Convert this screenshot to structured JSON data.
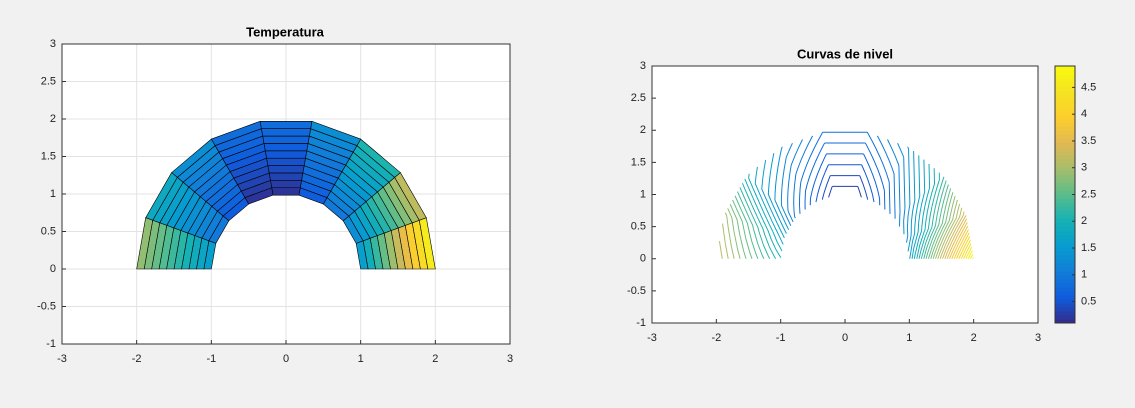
{
  "chart_data": [
    {
      "type": "patch",
      "title": "Temperatura",
      "theta_deg": [
        0,
        20,
        40,
        60,
        80,
        100,
        120,
        140,
        160,
        180
      ],
      "radius": [
        1,
        1.1,
        1.2,
        1.3,
        1.4,
        1.5,
        1.6,
        1.7,
        1.8,
        1.9,
        2
      ],
      "temperature": [
        [
          1.6,
          1.93,
          2.26,
          2.59,
          2.92,
          3.25,
          3.58,
          3.91,
          4.24,
          4.57,
          4.9
        ],
        [
          1.3,
          1.51,
          1.72,
          1.93,
          2.14,
          2.35,
          2.56,
          2.77,
          2.98,
          3.19,
          3.4
        ],
        [
          1.0,
          1.12,
          1.24,
          1.36,
          1.48,
          1.6,
          1.72,
          1.84,
          1.96,
          2.08,
          2.2
        ],
        [
          0.6,
          0.68,
          0.76,
          0.84,
          0.92,
          1.0,
          1.08,
          1.16,
          1.24,
          1.32,
          1.4
        ],
        [
          0.2,
          0.27,
          0.34,
          0.41,
          0.48,
          0.55,
          0.62,
          0.69,
          0.76,
          0.83,
          0.9
        ],
        [
          0.2,
          0.27,
          0.34,
          0.41,
          0.48,
          0.55,
          0.62,
          0.69,
          0.76,
          0.83,
          0.9
        ],
        [
          0.6,
          0.68,
          0.76,
          0.84,
          0.92,
          1.0,
          1.08,
          1.16,
          1.24,
          1.32,
          1.4
        ],
        [
          1.0,
          1.09,
          1.18,
          1.27,
          1.36,
          1.45,
          1.54,
          1.63,
          1.72,
          1.81,
          1.9
        ],
        [
          1.6,
          1.74,
          1.88,
          2.02,
          2.16,
          2.3,
          2.44,
          2.58,
          2.72,
          2.86,
          3.0
        ],
        [
          2.0,
          2.13,
          2.26,
          2.39,
          2.52,
          2.65,
          2.78,
          2.91,
          3.04,
          3.17,
          3.3
        ]
      ],
      "xlim": [
        -3,
        3
      ],
      "xticks": [
        -3,
        -2,
        -1,
        0,
        1,
        2,
        3
      ],
      "ylim": [
        -1,
        3
      ],
      "yticks": [
        -1,
        -0.5,
        0,
        0.5,
        1,
        1.5,
        2,
        2.5,
        3
      ],
      "grid": true,
      "clim": [
        0.1,
        4.9
      ],
      "colormap": "parula",
      "edge_color": "#000000"
    },
    {
      "type": "contour",
      "title": "Curvas de nivel",
      "levels": [
        0.3,
        0.42,
        0.54,
        0.66,
        0.78,
        0.9,
        1.02,
        1.14,
        1.26,
        1.38,
        1.5,
        1.62,
        1.74,
        1.86,
        1.98,
        2.1,
        2.22,
        2.34,
        2.46,
        2.58,
        2.7,
        2.82,
        2.94,
        3.06,
        3.18,
        3.3,
        3.42,
        3.54,
        3.66,
        3.78,
        3.9,
        4.02,
        4.14,
        4.26,
        4.38,
        4.5,
        4.62,
        4.74,
        4.86
      ],
      "xlim": [
        -3,
        3
      ],
      "xticks": [
        -3,
        -2,
        -1,
        0,
        1,
        2,
        3
      ],
      "ylim": [
        -1,
        3
      ],
      "yticks": [
        -1,
        -0.5,
        0,
        0.5,
        1,
        1.5,
        2,
        2.5,
        3
      ],
      "grid": false,
      "clim": [
        0.1,
        4.9
      ],
      "colormap": "parula",
      "colorbar_ticks": [
        0.5,
        1,
        1.5,
        2,
        2.5,
        3,
        3.5,
        4,
        4.5
      ]
    }
  ]
}
